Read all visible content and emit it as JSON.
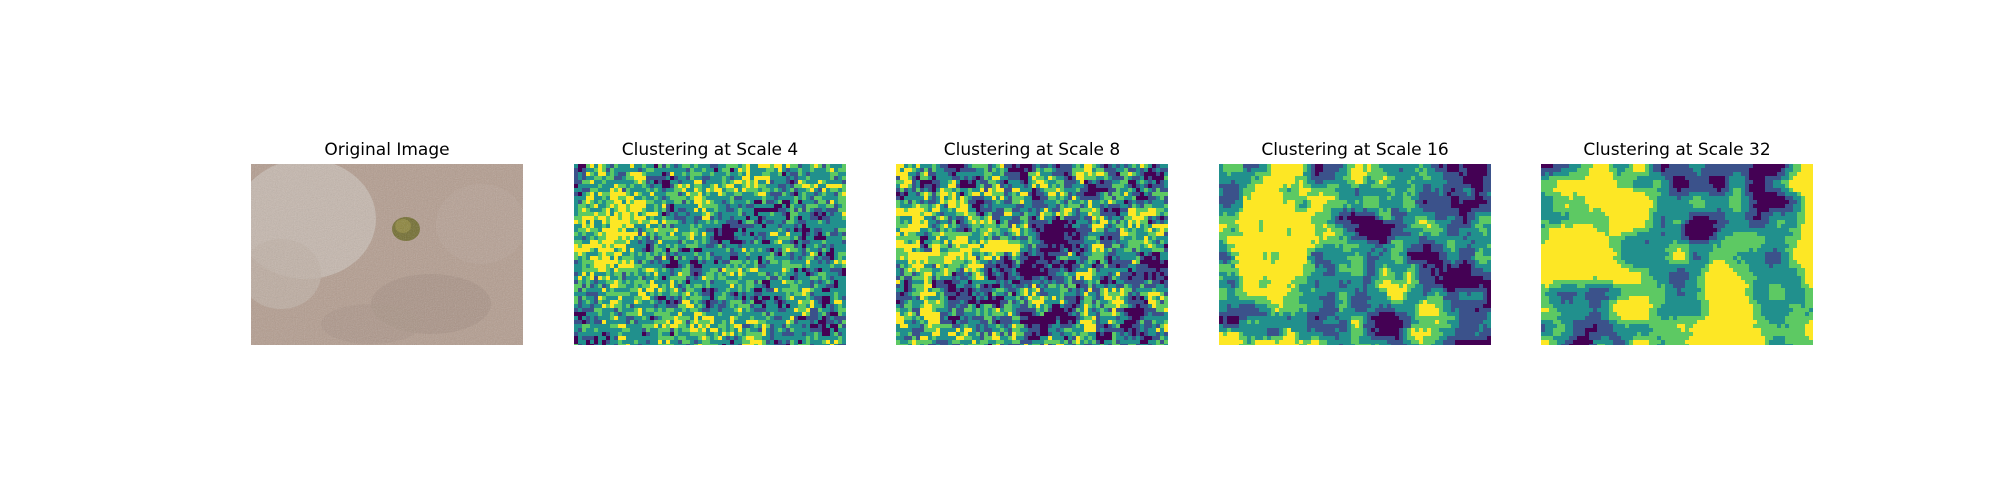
{
  "panels": [
    {
      "title": "Original Image"
    },
    {
      "title": "Clustering at Scale 4"
    },
    {
      "title": "Clustering at Scale 8"
    },
    {
      "title": "Clustering at Scale 16"
    },
    {
      "title": "Clustering at Scale 32"
    }
  ],
  "colors": {
    "viridis": [
      "#440154",
      "#3b528b",
      "#21908d",
      "#5dc963",
      "#fde725"
    ],
    "photo_ground": "#b49d8f",
    "photo_shrub": "#6f6a2a"
  }
}
